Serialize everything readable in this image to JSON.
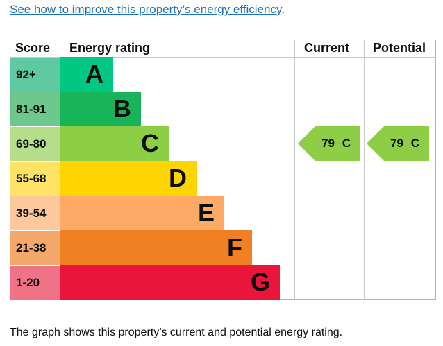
{
  "link_text": "See how to improve this property’s energy efficiency",
  "link_period": ".",
  "footer": "The graph shows this property’s current and potential energy rating.",
  "chart_data": {
    "type": "table",
    "headers": [
      "Score",
      "Energy rating",
      "Current",
      "Potential"
    ],
    "bands": [
      {
        "score": "92+",
        "letter": "A",
        "color": "#00c781",
        "tint": "#5fcaa1"
      },
      {
        "score": "81-91",
        "letter": "B",
        "color": "#19b459",
        "tint": "#6dc98b"
      },
      {
        "score": "69-80",
        "letter": "C",
        "color": "#8dce46",
        "tint": "#b5de8a"
      },
      {
        "score": "55-68",
        "letter": "D",
        "color": "#ffd500",
        "tint": "#ffe366"
      },
      {
        "score": "39-54",
        "letter": "E",
        "color": "#fcaa65",
        "tint": "#fdc89c"
      },
      {
        "score": "21-38",
        "letter": "F",
        "color": "#ef8023",
        "tint": "#f4a86a"
      },
      {
        "score": "1-20",
        "letter": "G",
        "color": "#e9153b",
        "tint": "#f07287"
      }
    ],
    "current": {
      "value": 79,
      "band": "C",
      "label": "79 C"
    },
    "potential": {
      "value": 79,
      "band": "C",
      "label": "79 C"
    }
  }
}
